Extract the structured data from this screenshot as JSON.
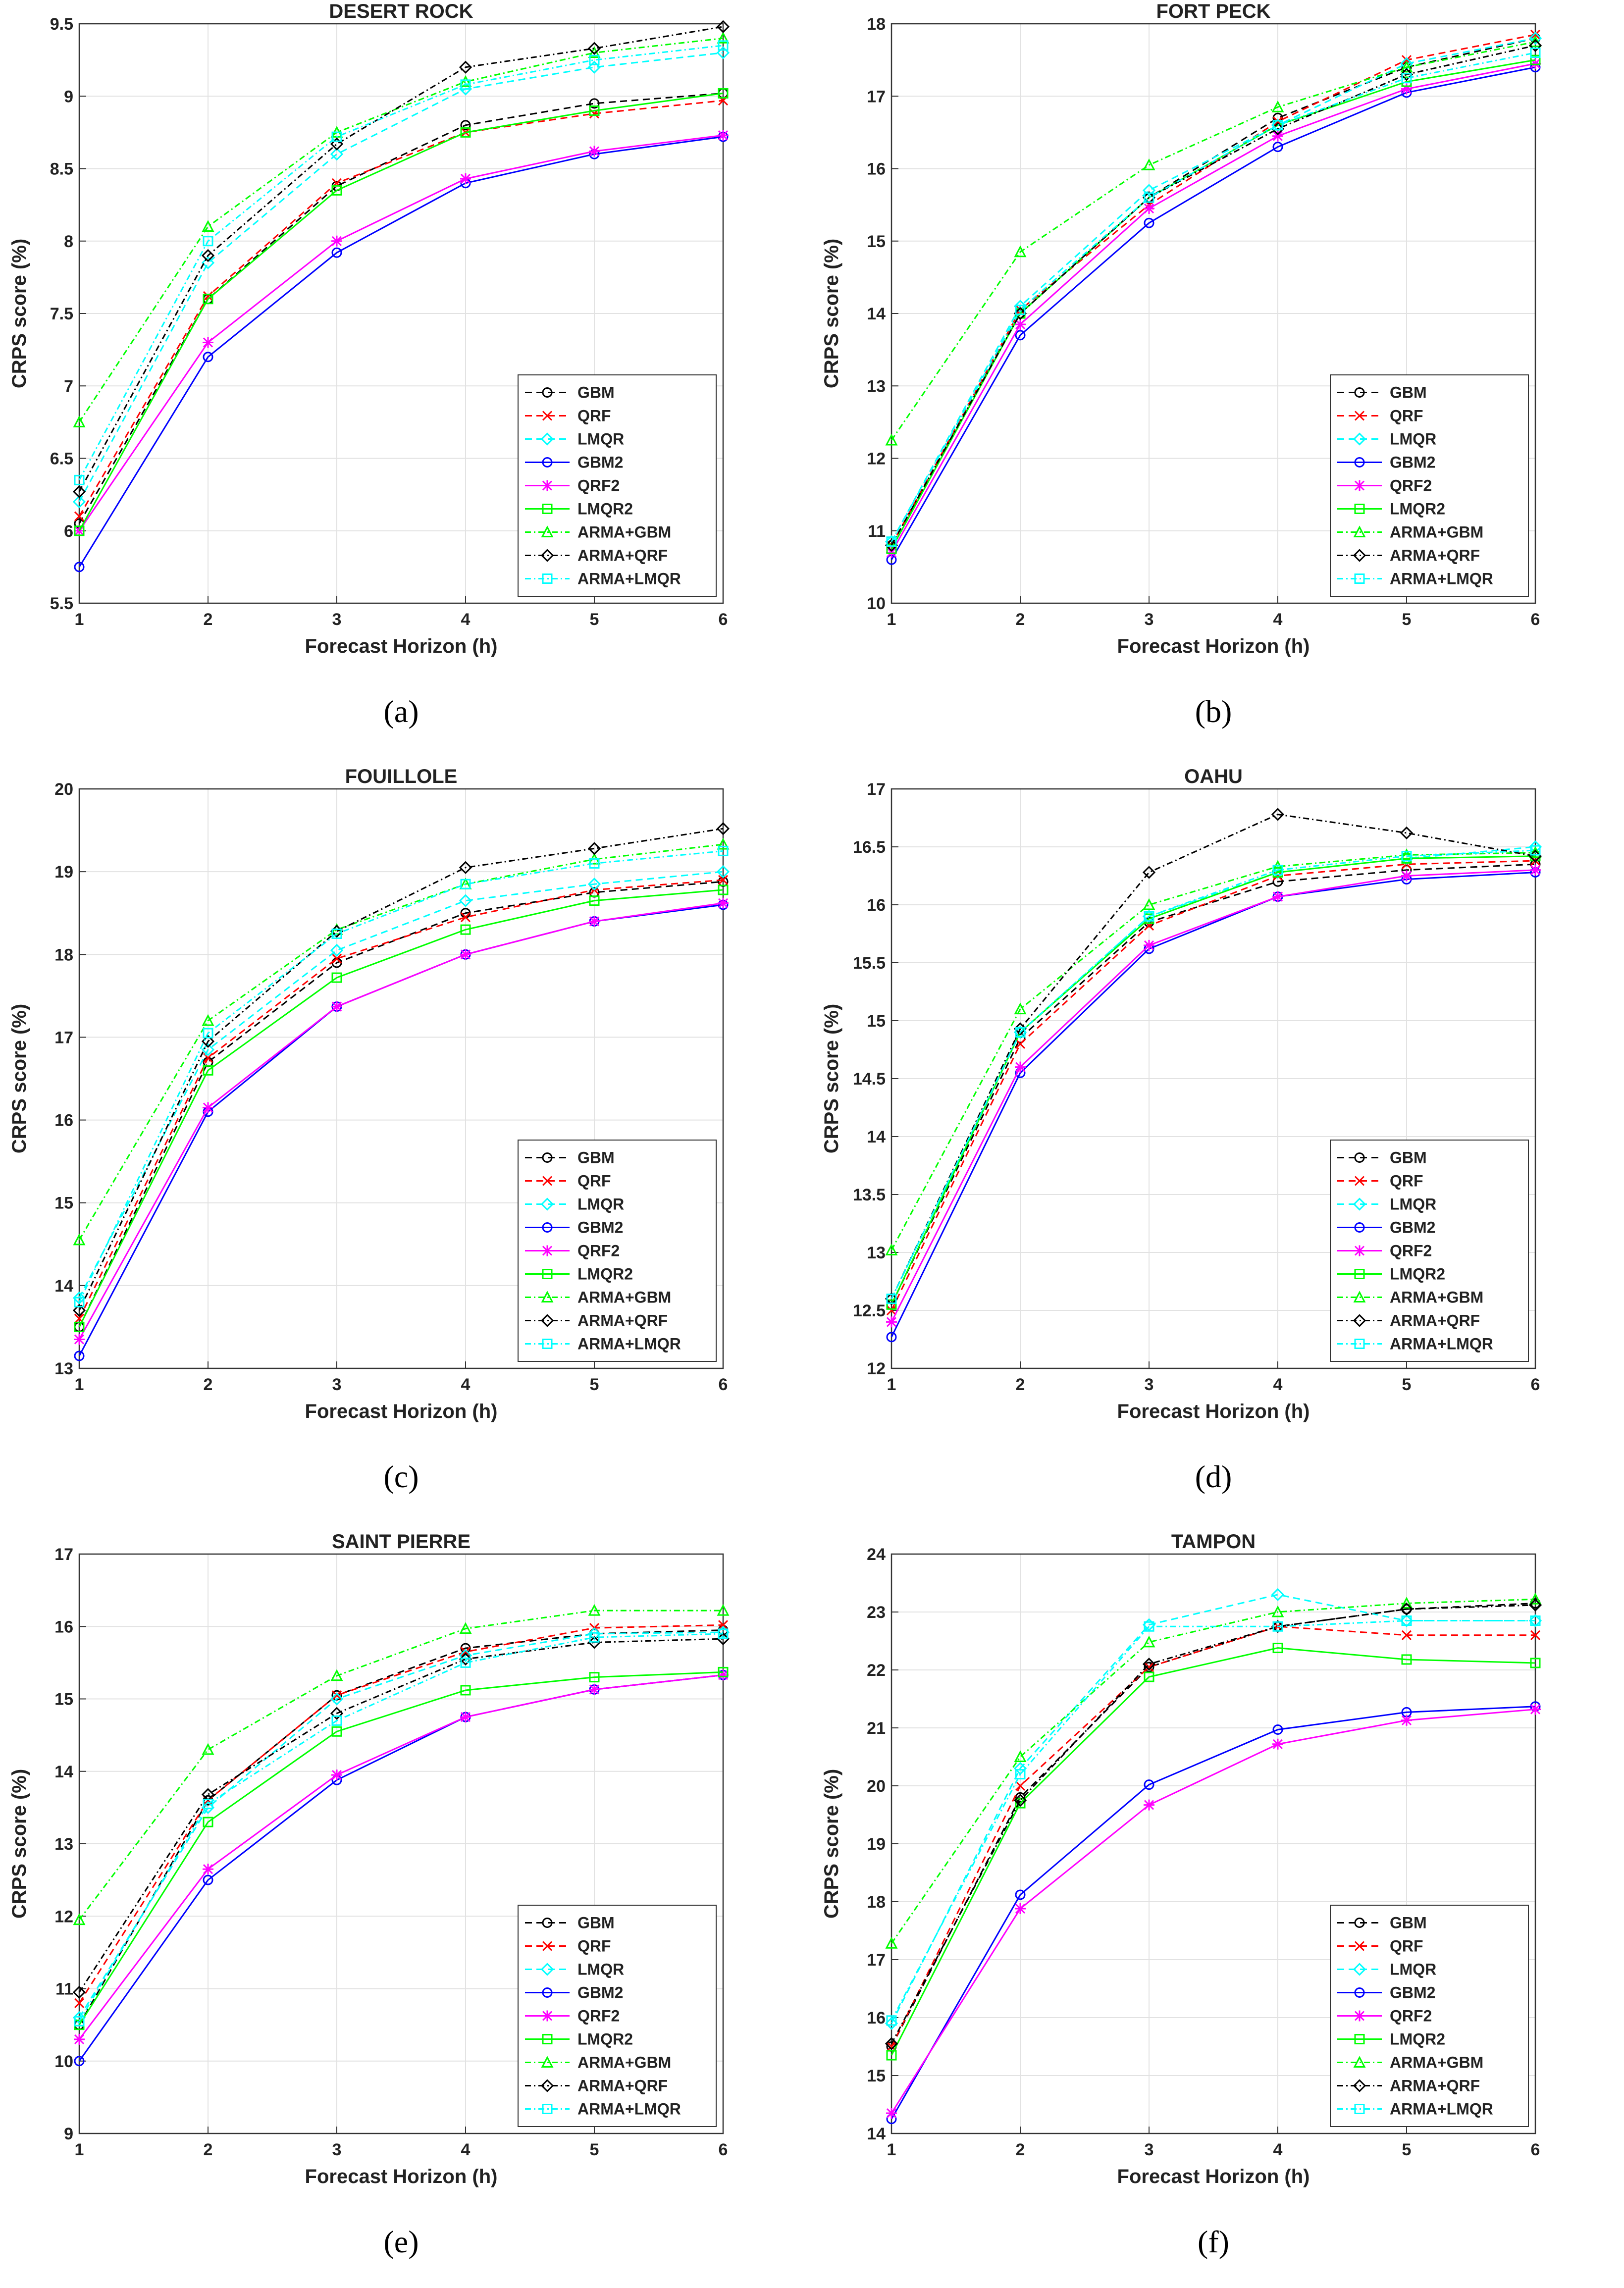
{
  "chart_data": [
    {
      "type": "line",
      "title": "DESERT ROCK",
      "sublabel": "(a)",
      "xlabel": "Forecast Horizon (h)",
      "ylabel": "CRPS score (%)",
      "xlim": [
        1,
        6
      ],
      "ylim": [
        5.5,
        9.5
      ],
      "x_ticks": [
        "1",
        "2",
        "3",
        "4",
        "5",
        "6"
      ],
      "y_ticks": [
        "5.5",
        "6",
        "6.5",
        "7",
        "7.5",
        "8",
        "8.5",
        "9",
        "9.5"
      ],
      "grid": true,
      "legend": "lower-right",
      "x": [
        1,
        2,
        3,
        4,
        5,
        6
      ],
      "series": [
        {
          "name": "GBM",
          "values": [
            6.05,
            7.6,
            8.38,
            8.8,
            8.95,
            9.02
          ]
        },
        {
          "name": "QRF",
          "values": [
            6.1,
            7.62,
            8.4,
            8.75,
            8.88,
            8.97
          ]
        },
        {
          "name": "LMQR",
          "values": [
            6.2,
            7.85,
            8.6,
            9.05,
            9.2,
            9.3
          ]
        },
        {
          "name": "GBM2",
          "values": [
            5.75,
            7.2,
            7.92,
            8.4,
            8.6,
            8.72
          ]
        },
        {
          "name": "QRF2",
          "values": [
            6.0,
            7.3,
            8.0,
            8.43,
            8.62,
            8.73
          ]
        },
        {
          "name": "LMQR2",
          "values": [
            6.0,
            7.6,
            8.35,
            8.75,
            8.9,
            9.02
          ]
        },
        {
          "name": "ARMA+GBM",
          "values": [
            6.75,
            8.1,
            8.75,
            9.1,
            9.3,
            9.4
          ]
        },
        {
          "name": "ARMA+QRF",
          "values": [
            6.27,
            7.9,
            8.67,
            9.2,
            9.33,
            9.48
          ]
        },
        {
          "name": "ARMA+LMQR",
          "values": [
            6.35,
            8.0,
            8.72,
            9.08,
            9.25,
            9.35
          ]
        }
      ]
    },
    {
      "type": "line",
      "title": "FORT PECK",
      "sublabel": "(b)",
      "xlabel": "Forecast Horizon (h)",
      "ylabel": "CRPS score (%)",
      "xlim": [
        1,
        6
      ],
      "ylim": [
        10,
        18
      ],
      "x_ticks": [
        "1",
        "2",
        "3",
        "4",
        "5",
        "6"
      ],
      "y_ticks": [
        "10",
        "11",
        "12",
        "13",
        "14",
        "15",
        "16",
        "17",
        "18"
      ],
      "grid": true,
      "legend": "lower-right",
      "x": [
        1,
        2,
        3,
        4,
        5,
        6
      ],
      "series": [
        {
          "name": "GBM",
          "values": [
            10.8,
            14.0,
            15.6,
            16.7,
            17.4,
            17.8
          ]
        },
        {
          "name": "QRF",
          "values": [
            10.8,
            14.05,
            15.5,
            16.65,
            17.5,
            17.85
          ]
        },
        {
          "name": "LMQR",
          "values": [
            10.85,
            14.1,
            15.7,
            16.6,
            17.45,
            17.8
          ]
        },
        {
          "name": "GBM2",
          "values": [
            10.6,
            13.7,
            15.25,
            16.3,
            17.05,
            17.4
          ]
        },
        {
          "name": "QRF2",
          "values": [
            10.7,
            13.85,
            15.45,
            16.45,
            17.1,
            17.45
          ]
        },
        {
          "name": "LMQR2",
          "values": [
            10.75,
            14.0,
            15.6,
            16.6,
            17.2,
            17.5
          ]
        },
        {
          "name": "ARMA+GBM",
          "values": [
            12.25,
            14.85,
            16.05,
            16.85,
            17.4,
            17.75
          ]
        },
        {
          "name": "ARMA+QRF",
          "values": [
            10.8,
            14.0,
            15.6,
            16.55,
            17.3,
            17.7
          ]
        },
        {
          "name": "ARMA+LMQR",
          "values": [
            10.85,
            14.05,
            15.6,
            16.6,
            17.25,
            17.6
          ]
        }
      ]
    },
    {
      "type": "line",
      "title": "FOUILLOLE",
      "sublabel": "(c)",
      "xlabel": "Forecast Horizon (h)",
      "ylabel": "CRPS score (%)",
      "xlim": [
        1,
        6
      ],
      "ylim": [
        13,
        20
      ],
      "x_ticks": [
        "1",
        "2",
        "3",
        "4",
        "5",
        "6"
      ],
      "y_ticks": [
        "13",
        "14",
        "15",
        "16",
        "17",
        "18",
        "19",
        "20"
      ],
      "grid": true,
      "legend": "lower-right",
      "x": [
        1,
        2,
        3,
        4,
        5,
        6
      ],
      "series": [
        {
          "name": "GBM",
          "values": [
            13.5,
            16.7,
            17.9,
            18.5,
            18.75,
            18.88
          ]
        },
        {
          "name": "QRF",
          "values": [
            13.6,
            16.75,
            17.95,
            18.45,
            18.78,
            18.9
          ]
        },
        {
          "name": "LMQR",
          "values": [
            13.85,
            16.85,
            18.05,
            18.65,
            18.85,
            19.0
          ]
        },
        {
          "name": "GBM2",
          "values": [
            13.15,
            16.1,
            17.37,
            18.0,
            18.4,
            18.6
          ]
        },
        {
          "name": "QRF2",
          "values": [
            13.35,
            16.15,
            17.37,
            18.0,
            18.4,
            18.62
          ]
        },
        {
          "name": "LMQR2",
          "values": [
            13.5,
            16.6,
            17.72,
            18.3,
            18.65,
            18.78
          ]
        },
        {
          "name": "ARMA+GBM",
          "values": [
            14.55,
            17.2,
            18.3,
            18.85,
            19.15,
            19.33
          ]
        },
        {
          "name": "ARMA+QRF",
          "values": [
            13.7,
            16.95,
            18.28,
            19.05,
            19.28,
            19.52
          ]
        },
        {
          "name": "ARMA+LMQR",
          "values": [
            13.8,
            17.05,
            18.25,
            18.85,
            19.1,
            19.25
          ]
        }
      ]
    },
    {
      "type": "line",
      "title": "OAHU",
      "sublabel": "(d)",
      "xlabel": "Forecast Horizon (h)",
      "ylabel": "CRPS score (%)",
      "xlim": [
        1,
        6
      ],
      "ylim": [
        12,
        17
      ],
      "x_ticks": [
        "1",
        "2",
        "3",
        "4",
        "5",
        "6"
      ],
      "y_ticks": [
        "12",
        "12.5",
        "13",
        "13.5",
        "14",
        "14.5",
        "15",
        "15.5",
        "16",
        "16.5",
        "17"
      ],
      "grid": true,
      "legend": "lower-right",
      "x": [
        1,
        2,
        3,
        4,
        5,
        6
      ],
      "series": [
        {
          "name": "GBM",
          "values": [
            12.55,
            14.85,
            15.85,
            16.2,
            16.3,
            16.35
          ]
        },
        {
          "name": "QRF",
          "values": [
            12.5,
            14.8,
            15.82,
            16.25,
            16.35,
            16.38
          ]
        },
        {
          "name": "LMQR",
          "values": [
            12.6,
            14.9,
            15.9,
            16.28,
            16.4,
            16.5
          ]
        },
        {
          "name": "GBM2",
          "values": [
            12.27,
            14.55,
            15.62,
            16.07,
            16.22,
            16.28
          ]
        },
        {
          "name": "QRF2",
          "values": [
            12.4,
            14.6,
            15.65,
            16.07,
            16.25,
            16.3
          ]
        },
        {
          "name": "LMQR2",
          "values": [
            12.55,
            14.9,
            15.88,
            16.28,
            16.4,
            16.42
          ]
        },
        {
          "name": "ARMA+GBM",
          "values": [
            13.02,
            15.1,
            16.0,
            16.33,
            16.43,
            16.45
          ]
        },
        {
          "name": "ARMA+QRF",
          "values": [
            12.6,
            14.93,
            16.28,
            16.78,
            16.62,
            16.42
          ]
        },
        {
          "name": "ARMA+LMQR",
          "values": [
            12.6,
            14.9,
            15.9,
            16.3,
            16.42,
            16.47
          ]
        }
      ]
    },
    {
      "type": "line",
      "title": "SAINT PIERRE",
      "sublabel": "(e)",
      "xlabel": "Forecast Horizon (h)",
      "ylabel": "CRPS score (%)",
      "xlim": [
        1,
        6
      ],
      "ylim": [
        9,
        17
      ],
      "x_ticks": [
        "1",
        "2",
        "3",
        "4",
        "5",
        "6"
      ],
      "y_ticks": [
        "9",
        "10",
        "11",
        "12",
        "13",
        "14",
        "15",
        "16",
        "17"
      ],
      "grid": true,
      "legend": "lower-right",
      "x": [
        1,
        2,
        3,
        4,
        5,
        6
      ],
      "series": [
        {
          "name": "GBM",
          "values": [
            10.5,
            13.6,
            15.05,
            15.7,
            15.9,
            15.95
          ]
        },
        {
          "name": "QRF",
          "values": [
            10.8,
            13.6,
            15.05,
            15.65,
            15.98,
            16.02
          ]
        },
        {
          "name": "LMQR",
          "values": [
            10.6,
            13.5,
            15.0,
            15.6,
            15.9,
            15.92
          ]
        },
        {
          "name": "GBM2",
          "values": [
            10.0,
            12.5,
            13.88,
            14.75,
            15.13,
            15.33
          ]
        },
        {
          "name": "QRF2",
          "values": [
            10.3,
            12.65,
            13.95,
            14.75,
            15.13,
            15.33
          ]
        },
        {
          "name": "LMQR2",
          "values": [
            10.5,
            13.3,
            14.55,
            15.12,
            15.3,
            15.37
          ]
        },
        {
          "name": "ARMA+GBM",
          "values": [
            11.95,
            14.3,
            15.32,
            15.97,
            16.22,
            16.22
          ]
        },
        {
          "name": "ARMA+QRF",
          "values": [
            10.95,
            13.68,
            14.8,
            15.55,
            15.78,
            15.83
          ]
        },
        {
          "name": "ARMA+LMQR",
          "values": [
            10.55,
            13.55,
            14.7,
            15.5,
            15.85,
            15.9
          ]
        }
      ]
    },
    {
      "type": "line",
      "title": "TAMPON",
      "sublabel": "(f)",
      "xlabel": "Forecast Horizon (h)",
      "ylabel": "CRPS score (%)",
      "xlim": [
        1,
        6
      ],
      "ylim": [
        14,
        24
      ],
      "x_ticks": [
        "1",
        "2",
        "3",
        "4",
        "5",
        "6"
      ],
      "y_ticks": [
        "14",
        "15",
        "16",
        "17",
        "18",
        "19",
        "20",
        "21",
        "22",
        "23",
        "24"
      ],
      "grid": true,
      "legend": "lower-right",
      "x": [
        1,
        2,
        3,
        4,
        5,
        6
      ],
      "series": [
        {
          "name": "GBM",
          "values": [
            15.5,
            19.8,
            22.05,
            22.75,
            23.05,
            23.15
          ]
        },
        {
          "name": "QRF",
          "values": [
            15.5,
            20.0,
            22.05,
            22.75,
            22.6,
            22.6
          ]
        },
        {
          "name": "LMQR",
          "values": [
            15.9,
            20.3,
            22.78,
            23.3,
            22.85,
            22.85
          ]
        },
        {
          "name": "GBM2",
          "values": [
            14.25,
            18.12,
            20.02,
            20.97,
            21.27,
            21.37
          ]
        },
        {
          "name": "QRF2",
          "values": [
            14.35,
            17.88,
            19.67,
            20.72,
            21.13,
            21.32
          ]
        },
        {
          "name": "LMQR2",
          "values": [
            15.35,
            19.7,
            21.88,
            22.38,
            22.18,
            22.12
          ]
        },
        {
          "name": "ARMA+GBM",
          "values": [
            17.28,
            20.5,
            22.48,
            23.0,
            23.15,
            23.22
          ]
        },
        {
          "name": "ARMA+QRF",
          "values": [
            15.55,
            19.75,
            22.1,
            22.75,
            23.05,
            23.12
          ]
        },
        {
          "name": "ARMA+LMQR",
          "values": [
            15.95,
            20.2,
            22.75,
            22.75,
            22.85,
            22.85
          ]
        }
      ]
    }
  ],
  "series_style": [
    {
      "color": "#000000",
      "dash": "14,9",
      "marker": "circle"
    },
    {
      "color": "#ff0000",
      "dash": "14,9",
      "marker": "x"
    },
    {
      "color": "#00ffff",
      "dash": "14,9",
      "marker": "diamond"
    },
    {
      "color": "#0000ff",
      "dash": "",
      "marker": "circle"
    },
    {
      "color": "#ff00ff",
      "dash": "",
      "marker": "star"
    },
    {
      "color": "#00ff00",
      "dash": "",
      "marker": "square"
    },
    {
      "color": "#00ff00",
      "dash": "12,6,3,6",
      "marker": "triangle"
    },
    {
      "color": "#000000",
      "dash": "12,6,3,6",
      "marker": "diamond"
    },
    {
      "color": "#00ffff",
      "dash": "12,6,3,6",
      "marker": "square"
    }
  ]
}
